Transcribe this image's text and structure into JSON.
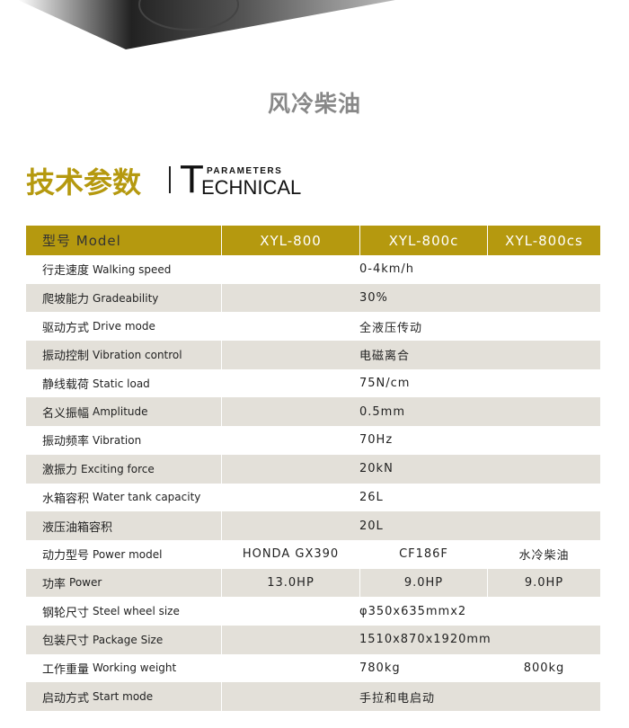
{
  "subtitle": "风冷柴油",
  "heading": {
    "cn": "技术参数",
    "en_T": "T",
    "en_rest": "ECHNICAL",
    "en_sub": "PARAMETERS"
  },
  "colors": {
    "header": "#b5990f",
    "stripe": "#e3e0d9"
  },
  "table": {
    "header": {
      "label": "型号 Model",
      "models": [
        "XYL-800",
        "XYL-800c",
        "XYL-800cs"
      ]
    },
    "rows": [
      {
        "cn": "行走速度",
        "en": "Walking speed",
        "value": "0-4km/h"
      },
      {
        "cn": "爬坡能力",
        "en": "Gradeability",
        "value": "30%"
      },
      {
        "cn": "驱动方式",
        "en": "Drive mode",
        "value": "全液压传动"
      },
      {
        "cn": "振动控制",
        "en": "Vibration control",
        "value": "电磁离合"
      },
      {
        "cn": "静线载荷",
        "en": "Static load",
        "value": "75N/cm"
      },
      {
        "cn": "名义振幅",
        "en": "Amplitude",
        "value": "0.5mm"
      },
      {
        "cn": "振动频率",
        "en": "Vibration",
        "value": "70Hz"
      },
      {
        "cn": "激振力",
        "en": "Exciting force",
        "value": "20kN"
      },
      {
        "cn": "水箱容积",
        "en": "Water tank capacity",
        "value": "26L"
      },
      {
        "cn": "液压油箱容积",
        "en": "",
        "value": "20L"
      }
    ],
    "power_model": {
      "cn": "动力型号",
      "en": "Power model",
      "values": [
        "HONDA GX390",
        "CF186F",
        "水冷柴油"
      ]
    },
    "power": {
      "cn": "功率",
      "en": "Power",
      "values": [
        "13.0HP",
        "9.0HP",
        "9.0HP"
      ]
    },
    "wheel": {
      "cn": "钢轮尺寸",
      "en": "Steel wheel size",
      "value": "φ350x635mmx2"
    },
    "package": {
      "cn": "包装尺寸",
      "en": "Package Size",
      "value": "1510x870x1920mm"
    },
    "weight": {
      "cn": "工作重量",
      "en": "Working weight",
      "values": [
        "780kg",
        "800kg"
      ]
    },
    "start": {
      "cn": "启动方式",
      "en": "Start mode",
      "value": "手拉和电启动"
    }
  }
}
